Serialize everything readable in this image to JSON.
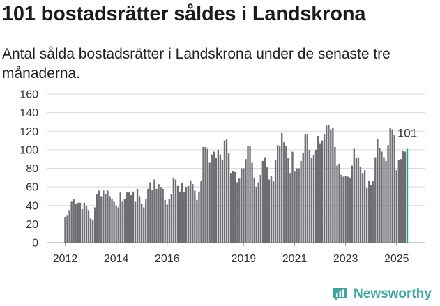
{
  "title": "101 bostadsrätter såldes i Landskrona",
  "subtitle": "Antal sålda bostadsrätter i Landskrona under de senaste tre månaderna.",
  "brand": {
    "name": "Newsworthy",
    "icon": "newsworthy-chart-logo-icon"
  },
  "colors": {
    "bar": "#6e6d74",
    "highlight": "#2a9d96",
    "grid": "#d9d9d9",
    "brand": "#3ba7a0"
  },
  "chart_data": {
    "type": "bar",
    "title": "101 bostadsrätter såldes i Landskrona",
    "xlabel": "",
    "ylabel": "",
    "ylim": [
      0,
      160
    ],
    "yticks": [
      "0",
      "20",
      "40",
      "60",
      "80",
      "100",
      "120",
      "140",
      "160"
    ],
    "xticks": [
      "2012",
      "2014",
      "2016",
      "2019",
      "2021",
      "2023",
      "2025"
    ],
    "grid": true,
    "start_month": "2012-01",
    "end_month": "2025-06",
    "last_value_label": "101",
    "values": [
      27,
      29,
      35,
      44,
      47,
      42,
      43,
      43,
      36,
      43,
      39,
      35,
      26,
      24,
      38,
      52,
      56,
      50,
      56,
      52,
      56,
      50,
      47,
      44,
      40,
      38,
      54,
      44,
      47,
      54,
      54,
      51,
      55,
      44,
      58,
      50,
      42,
      38,
      47,
      58,
      65,
      57,
      68,
      58,
      63,
      60,
      58,
      46,
      41,
      47,
      52,
      70,
      68,
      61,
      55,
      64,
      54,
      60,
      61,
      67,
      63,
      56,
      46,
      55,
      66,
      103,
      103,
      101,
      86,
      95,
      98,
      91,
      100,
      95,
      89,
      110,
      111,
      96,
      75,
      77,
      76,
      65,
      69,
      80,
      80,
      90,
      104,
      104,
      86,
      70,
      60,
      65,
      73,
      88,
      92,
      81,
      68,
      72,
      66,
      89,
      105,
      104,
      118,
      108,
      104,
      91,
      75,
      98,
      77,
      80,
      80,
      88,
      97,
      117,
      117,
      100,
      91,
      94,
      100,
      115,
      107,
      110,
      117,
      126,
      127,
      122,
      124,
      103,
      83,
      85,
      73,
      71,
      72,
      71,
      70,
      83,
      101,
      91,
      92,
      82,
      75,
      78,
      59,
      67,
      62,
      66,
      92,
      112,
      102,
      98,
      92,
      88,
      105,
      124,
      122,
      116,
      78,
      89,
      90,
      99,
      98,
      101
    ]
  }
}
